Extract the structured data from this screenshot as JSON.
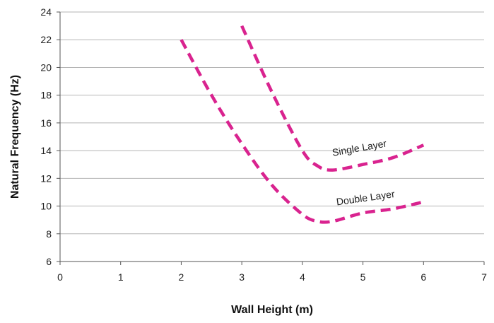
{
  "chart_data": {
    "type": "line",
    "title": "",
    "xlabel": "Wall Height (m)",
    "ylabel": "Natural Frequency (Hz)",
    "xlim": [
      0,
      7
    ],
    "ylim": [
      6,
      24
    ],
    "x_ticks": [
      "0",
      "1",
      "2",
      "3",
      "4",
      "5",
      "6",
      "7"
    ],
    "y_ticks": [
      "6",
      "8",
      "10",
      "12",
      "14",
      "16",
      "18",
      "20",
      "22",
      "24"
    ],
    "grid": "horizontal",
    "line_style": "dashed",
    "series": [
      {
        "name": "Single Layer",
        "color": "#d9238f",
        "points": [
          [
            3.0,
            23.0
          ],
          [
            3.5,
            18.2
          ],
          [
            4.0,
            14.0
          ],
          [
            4.25,
            12.9
          ],
          [
            4.5,
            12.6
          ],
          [
            5.0,
            13.0
          ],
          [
            5.5,
            13.5
          ],
          [
            6.0,
            14.4
          ]
        ]
      },
      {
        "name": "Double Layer",
        "color": "#d9238f",
        "points": [
          [
            2.0,
            22.0
          ],
          [
            2.5,
            18.0
          ],
          [
            3.0,
            14.5
          ],
          [
            3.5,
            11.5
          ],
          [
            4.0,
            9.4
          ],
          [
            4.25,
            8.9
          ],
          [
            4.5,
            8.9
          ],
          [
            5.0,
            9.5
          ],
          [
            5.5,
            9.8
          ],
          [
            6.0,
            10.3
          ]
        ]
      }
    ],
    "annotations": [
      {
        "text": "Single Layer",
        "x": 4.95,
        "y": 13.95,
        "angle": -10
      },
      {
        "text": "Double Layer",
        "x": 5.05,
        "y": 10.35,
        "angle": -8
      }
    ]
  }
}
